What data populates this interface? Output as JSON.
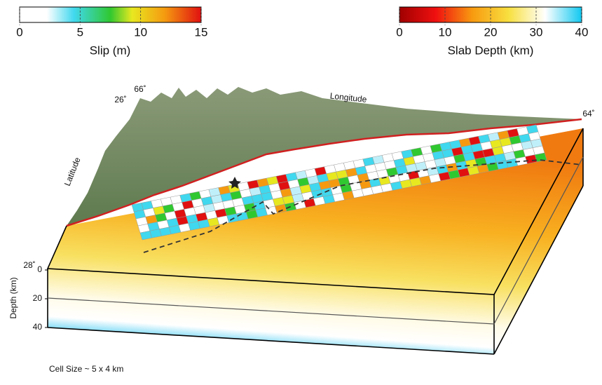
{
  "slip_colorbar": {
    "label": "Slip (m)",
    "ticks": [
      0,
      5,
      10,
      15
    ]
  },
  "depth_colorbar": {
    "label": "Slab Depth (km)",
    "ticks": [
      0,
      10,
      20,
      30,
      40
    ]
  },
  "block": {
    "longitude_label": "Longitude",
    "latitude_label": "Latitude",
    "lon_ticks": [
      "66˚",
      "64˚"
    ],
    "lat_ticks": [
      "26˚",
      "28˚"
    ],
    "depth_label": "Depth (km)",
    "depth_ticks": [
      0,
      20,
      40
    ]
  },
  "caption": "Cell Size ~ 5 x 4 km"
}
